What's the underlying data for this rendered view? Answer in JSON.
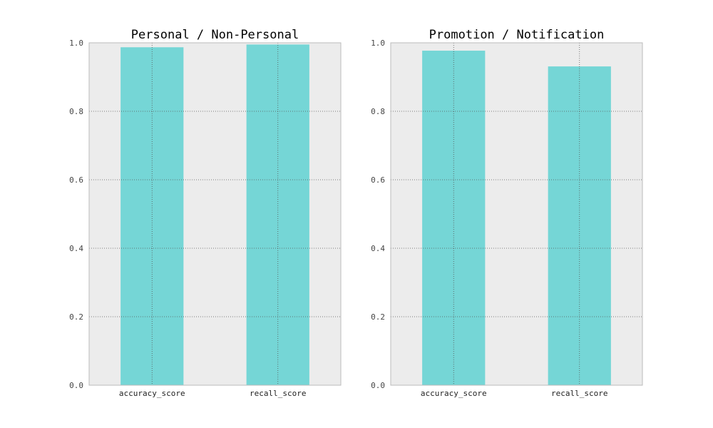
{
  "chart_data": [
    {
      "type": "bar",
      "title": "Personal / Non-Personal",
      "categories": [
        "accuracy_score",
        "recall_score"
      ],
      "values": [
        0.987,
        0.995
      ],
      "ylim": [
        0.0,
        1.0
      ],
      "yticks": [
        "0.0",
        "0.2",
        "0.4",
        "0.6",
        "0.8",
        "1.0"
      ],
      "grid": true,
      "xlabel": "",
      "ylabel": ""
    },
    {
      "type": "bar",
      "title": "Promotion / Notification",
      "categories": [
        "accuracy_score",
        "recall_score"
      ],
      "values": [
        0.977,
        0.931
      ],
      "ylim": [
        0.0,
        1.0
      ],
      "yticks": [
        "0.0",
        "0.2",
        "0.4",
        "0.6",
        "0.8",
        "1.0"
      ],
      "grid": true,
      "xlabel": "",
      "ylabel": ""
    }
  ],
  "colors": {
    "bar": "#75d6d6",
    "plot_background": "#ececec",
    "grid": "#555555",
    "axes_border": "#bbbbbb"
  }
}
